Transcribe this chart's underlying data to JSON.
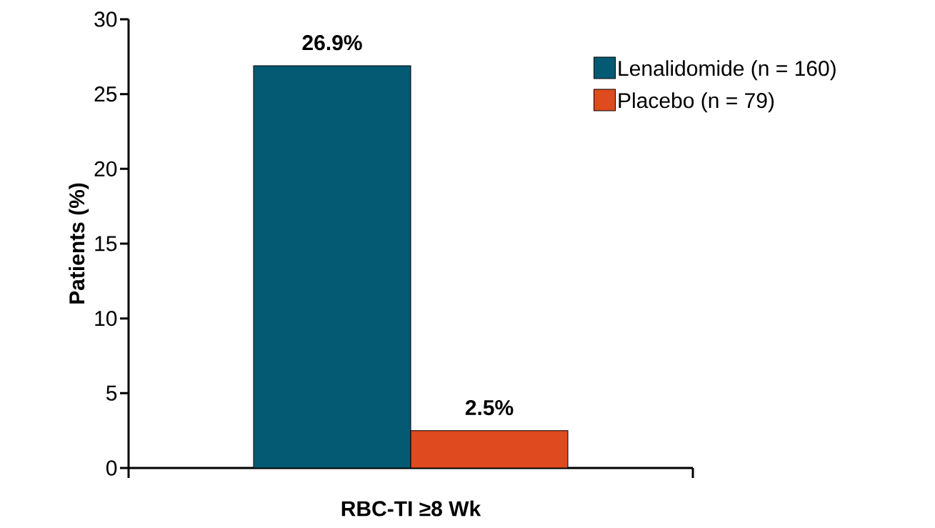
{
  "chart_data": {
    "type": "bar",
    "categories": [
      "RBC-TI ≥8 Wk"
    ],
    "ylabel": "Patients (%)",
    "ylim": [
      0,
      30
    ],
    "yticks": [
      0,
      5,
      10,
      15,
      20,
      25,
      30
    ],
    "legend": "top right",
    "grid": false,
    "series": [
      {
        "name": "Lenalidomide (n = 160)",
        "color": "#055a73",
        "values": [
          26.9
        ],
        "value_labels": [
          "26.9%"
        ]
      },
      {
        "name": "Placebo (n = 79)",
        "color": "#e04a1f",
        "values": [
          2.5
        ],
        "value_labels": [
          "2.5%"
        ]
      }
    ]
  }
}
